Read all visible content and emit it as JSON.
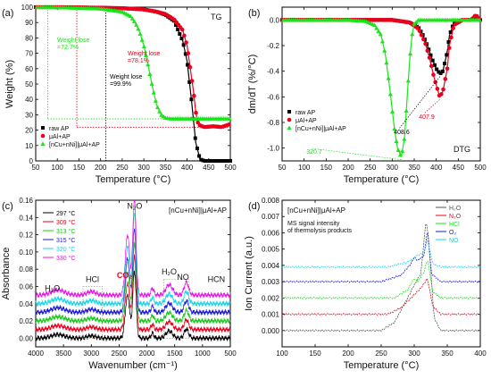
{
  "chart_data": [
    {
      "id": "a",
      "type": "line",
      "panel_label": "(a)",
      "title": "TG",
      "xlabel": "Temperature (°C)",
      "ylabel": "Weight (%)",
      "xlim": [
        50,
        500
      ],
      "ylim": [
        0,
        100
      ],
      "xticks": [
        50,
        100,
        150,
        200,
        250,
        300,
        350,
        400,
        450,
        500
      ],
      "yticks": [
        0,
        10,
        20,
        30,
        40,
        50,
        60,
        70,
        80,
        90,
        100
      ],
      "legend": "bottom-left",
      "series": [
        {
          "name": "raw AP",
          "color": "#000000",
          "marker": "square",
          "x": [
            50,
            100,
            150,
            200,
            250,
            300,
            330,
            350,
            370,
            390,
            400,
            410,
            420,
            430,
            440,
            460,
            500
          ],
          "y": [
            100,
            100,
            99.8,
            99.6,
            99.3,
            98.5,
            97,
            95,
            91,
            78,
            65,
            40,
            12,
            1,
            0,
            0,
            0
          ]
        },
        {
          "name": "μAl+AP",
          "color": "#e8001c",
          "marker": "circle",
          "x": [
            50,
            100,
            150,
            200,
            250,
            300,
            330,
            350,
            370,
            390,
            400,
            410,
            415,
            420,
            425,
            430,
            440,
            460,
            480,
            500
          ],
          "y": [
            100,
            100,
            99.8,
            99.6,
            99.3,
            98.5,
            97,
            95.5,
            92,
            85,
            75,
            55,
            45,
            32,
            25,
            23,
            22,
            22.5,
            22,
            24
          ]
        },
        {
          "name": "[nCu+nNi]|μAl+AP",
          "color": "#19e619",
          "marker": "triangle",
          "x": [
            50,
            100,
            150,
            200,
            250,
            270,
            280,
            290,
            300,
            310,
            320,
            330,
            340,
            350,
            360,
            400,
            450,
            500
          ],
          "y": [
            100,
            99.8,
            99.5,
            99,
            97,
            94,
            90,
            84,
            75,
            62,
            48,
            36,
            30,
            28,
            27.5,
            27.5,
            27.5,
            27.5
          ]
        }
      ],
      "annotations": [
        {
          "text": "Weight lose",
          "sub": "=72.7%",
          "color": "#19e619"
        },
        {
          "text": "Weight lose",
          "sub": "=78.1%",
          "color": "#e8001c"
        },
        {
          "text": "Weight lose",
          "sub": "=99.9%",
          "color": "#000000"
        }
      ]
    },
    {
      "id": "b",
      "type": "line",
      "panel_label": "(b)",
      "title": "DTG",
      "xlabel": "Temperature (°C)",
      "ylabel": "dm/dT (%/°C)",
      "xlim": [
        50,
        500
      ],
      "ylim": [
        -1.1,
        0.1
      ],
      "xticks": [
        50,
        100,
        150,
        200,
        250,
        300,
        350,
        400,
        450,
        500
      ],
      "yticks": [
        0.0,
        -0.2,
        -0.4,
        -0.6,
        -0.8,
        -1.0
      ],
      "legend": "bottom-left",
      "series": [
        {
          "name": "raw AP",
          "color": "#000000",
          "marker": "square",
          "x": [
            50,
            300,
            340,
            360,
            370,
            380,
            390,
            400,
            408.6,
            415,
            425,
            430,
            440,
            460,
            480,
            490,
            500
          ],
          "y": [
            0,
            0,
            -0.02,
            -0.06,
            -0.12,
            -0.2,
            -0.3,
            -0.38,
            -0.42,
            -0.4,
            -0.25,
            -0.12,
            -0.02,
            0,
            0,
            0.03,
            0
          ]
        },
        {
          "name": "μAl+AP",
          "color": "#e8001c",
          "marker": "circle",
          "x": [
            50,
            300,
            340,
            360,
            375,
            385,
            395,
            407.9,
            415,
            425,
            430,
            440,
            460,
            480,
            490,
            500
          ],
          "y": [
            0,
            0,
            -0.02,
            -0.07,
            -0.18,
            -0.3,
            -0.45,
            -0.6,
            -0.56,
            -0.38,
            -0.2,
            -0.04,
            0,
            0,
            0.04,
            0
          ]
        },
        {
          "name": "[nCu+nNi]|μAl+AP",
          "color": "#19e619",
          "marker": "triangle",
          "x": [
            50,
            200,
            240,
            260,
            275,
            285,
            295,
            305,
            312,
            320.7,
            328,
            335,
            340,
            345,
            350,
            360,
            400,
            500
          ],
          "y": [
            0,
            0,
            -0.01,
            -0.04,
            -0.12,
            -0.28,
            -0.55,
            -0.85,
            -1.0,
            -1.07,
            -0.92,
            -0.55,
            -0.3,
            -0.12,
            -0.03,
            0,
            0,
            0
          ]
        }
      ],
      "annotations": [
        {
          "text": "408.6",
          "color": "#000000"
        },
        {
          "text": "407.9",
          "color": "#e8001c"
        },
        {
          "text": "320.7",
          "color": "#19e619"
        }
      ]
    },
    {
      "id": "c",
      "type": "line",
      "panel_label": "(c)",
      "title": "[nCu+nNi]|μAl+AP",
      "xlabel": "Wavenumber (cm⁻¹)",
      "ylabel": "Absorbance",
      "xlim": [
        4000,
        500
      ],
      "ylim": [
        -0.01,
        0.16
      ],
      "xticks": [
        4000,
        3500,
        3000,
        2500,
        2000,
        1500,
        1000,
        500
      ],
      "yticks": [
        0.0,
        0.02,
        0.04,
        0.06,
        0.08,
        0.1,
        0.12,
        0.14,
        0.16
      ],
      "legend": "top-left",
      "series_names": [
        "297 °C",
        "309 °C",
        "313 °C",
        "315 °C",
        "320 °C",
        "330 °C"
      ],
      "series_colors": [
        "#000000",
        "#e8001c",
        "#19c819",
        "#1a1adc",
        "#19d7e6",
        "#e619e6"
      ],
      "series_offsets": [
        0.0,
        0.01,
        0.02,
        0.03,
        0.04,
        0.05
      ],
      "peaks": [
        {
          "center": 3600,
          "width": 120,
          "height": 0.006
        },
        {
          "center": 3000,
          "width": 80,
          "height": 0.004
        },
        {
          "center": 2349,
          "width": 40,
          "height": 0.07
        },
        {
          "center": 2224,
          "width": 30,
          "height": 0.11
        },
        {
          "center": 1900,
          "width": 25,
          "height": 0.008
        },
        {
          "center": 1600,
          "width": 60,
          "height": 0.012
        },
        {
          "center": 1290,
          "width": 40,
          "height": 0.015
        }
      ],
      "labels": [
        {
          "text": "H₂O",
          "color": "#111111"
        },
        {
          "text": "HCl",
          "color": "#111111"
        },
        {
          "text": "CO₂",
          "color": "#e8001c"
        },
        {
          "text": "N₂O",
          "color": "#111111"
        },
        {
          "text": "H₂O",
          "color": "#111111"
        },
        {
          "text": "NO",
          "color": "#111111"
        },
        {
          "text": "HCN",
          "color": "#111111"
        }
      ]
    },
    {
      "id": "d",
      "type": "line",
      "panel_label": "(d)",
      "title": "[nCu+nNi]|μAl+AP",
      "subtitle": "MS signal intensity of thermolysis products",
      "xlabel": "Temperature (°C)",
      "ylabel": "Ion Current (a.u.)",
      "xlim": [
        100,
        400
      ],
      "ylim": [
        -0.001,
        0.008
      ],
      "xticks": [
        100,
        150,
        200,
        250,
        300,
        350,
        400
      ],
      "yticks": [
        0.0,
        0.001,
        0.002,
        0.003,
        0.004,
        0.005,
        0.006,
        0.007,
        0.008
      ],
      "legend": "top-right",
      "series": [
        {
          "name": "H₂O",
          "color": "#555555",
          "base": 0.0,
          "shape": [
            [
              250,
              0.0
            ],
            [
              270,
              0.0005
            ],
            [
              290,
              0.002
            ],
            [
              300,
              0.0028
            ],
            [
              310,
              0.0035
            ],
            [
              318,
              0.0068
            ],
            [
              322,
              0.0055
            ],
            [
              330,
              0.0008
            ],
            [
              340,
              0.0
            ],
            [
              400,
              0.0
            ]
          ]
        },
        {
          "name": "N₂O",
          "color": "#e8001c",
          "base": 0.001,
          "shape": [
            [
              260,
              0.001
            ],
            [
              280,
              0.0014
            ],
            [
              300,
              0.0022
            ],
            [
              310,
              0.0026
            ],
            [
              320,
              0.0032
            ],
            [
              328,
              0.0015
            ],
            [
              340,
              0.001
            ],
            [
              400,
              0.001
            ]
          ]
        },
        {
          "name": "HCl",
          "color": "#19e619",
          "base": 0.002,
          "shape": [
            [
              270,
              0.002
            ],
            [
              290,
              0.0025
            ],
            [
              300,
              0.0032
            ],
            [
              305,
              0.003
            ],
            [
              315,
              0.0036
            ],
            [
              320,
              0.0044
            ],
            [
              328,
              0.0024
            ],
            [
              340,
              0.002
            ],
            [
              400,
              0.002
            ]
          ]
        },
        {
          "name": "O₂",
          "color": "#1a1adc",
          "base": 0.003,
          "shape": [
            [
              250,
              0.003
            ],
            [
              280,
              0.0034
            ],
            [
              295,
              0.0041
            ],
            [
              300,
              0.0045
            ],
            [
              305,
              0.0043
            ],
            [
              315,
              0.0046
            ],
            [
              320,
              0.0062
            ],
            [
              326,
              0.0035
            ],
            [
              340,
              0.003
            ],
            [
              400,
              0.003
            ]
          ]
        },
        {
          "name": "NO",
          "color": "#19d7e6",
          "base": 0.0039,
          "shape": [
            [
              260,
              0.0039
            ],
            [
              290,
              0.0042
            ],
            [
              305,
              0.0046
            ],
            [
              315,
              0.0048
            ],
            [
              320,
              0.0056
            ],
            [
              328,
              0.0041
            ],
            [
              340,
              0.0039
            ],
            [
              400,
              0.0039
            ]
          ]
        }
      ]
    }
  ]
}
